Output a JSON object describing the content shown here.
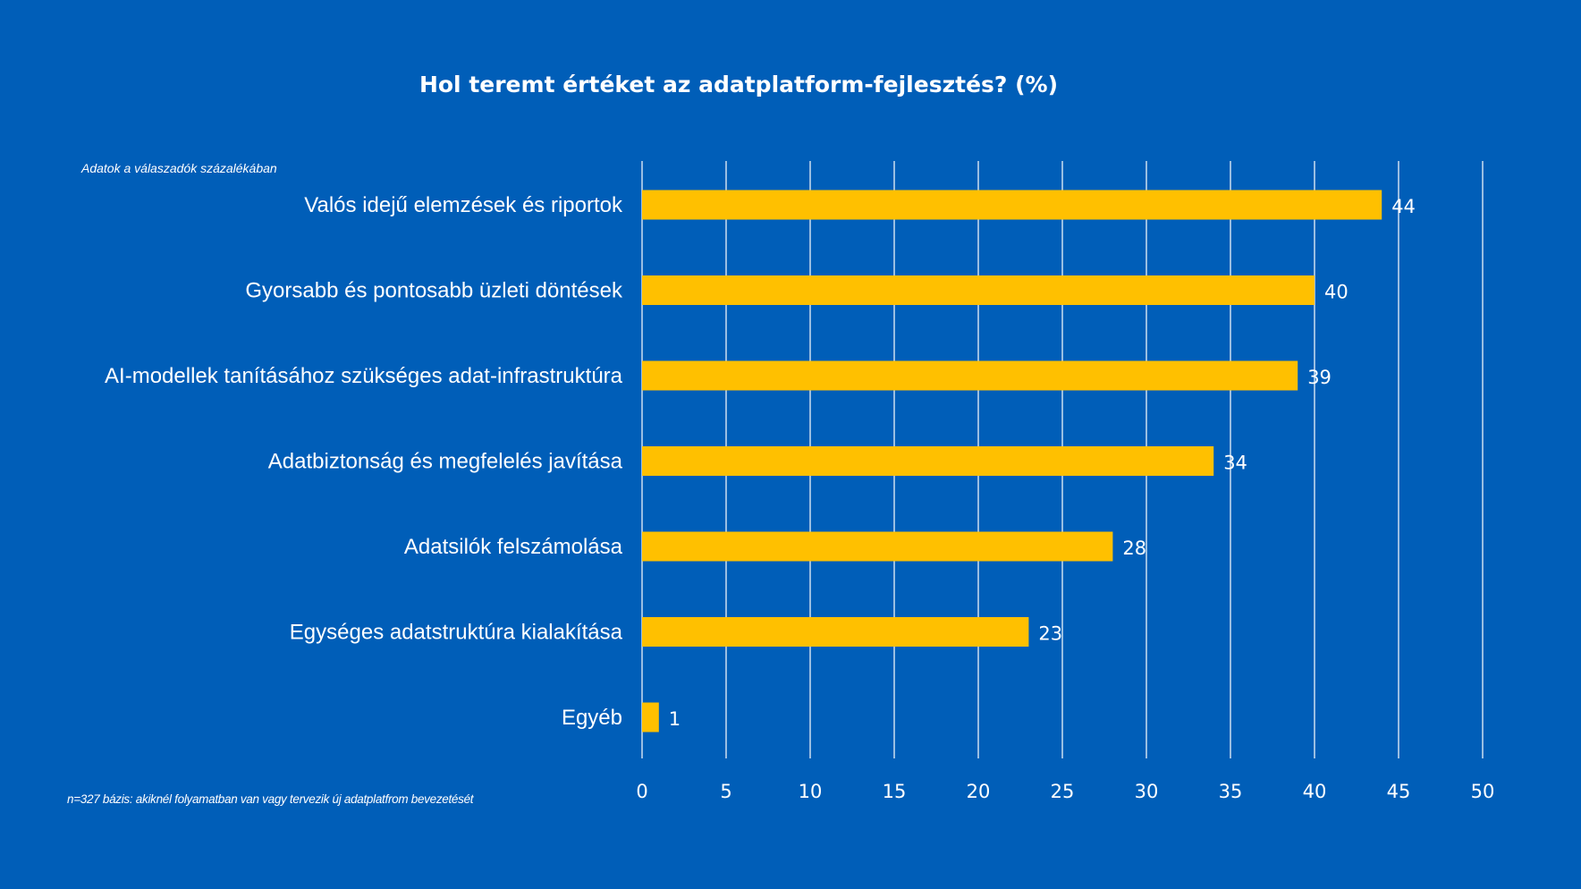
{
  "chart_data": {
    "type": "bar",
    "orientation": "horizontal",
    "title": "Hol teremt értéket az adatplatform-fejlesztés? (%)",
    "subtitle": "Adatok a válaszadók százalékában",
    "footnote": "n=327 bázis: akiknél folyamatban van vagy tervezik új adatplatfrom bevezetését",
    "categories": [
      "Valós idejű elemzések és riportok",
      "Gyorsabb és pontosabb üzleti döntések",
      "AI-modellek tanításához szükséges adat-infrastruktúra",
      "Adatbiztonság és megfelelés javítása",
      "Adatsilók felszámolása",
      "Egységes adatstruktúra kialakítása",
      "Egyéb"
    ],
    "values": [
      44,
      40,
      39,
      34,
      28,
      23,
      1
    ],
    "xlim": [
      0,
      50
    ],
    "xticks": [
      0,
      5,
      10,
      15,
      20,
      25,
      30,
      35,
      40,
      45,
      50
    ],
    "grid": true,
    "legend": "none",
    "colors": {
      "background": "#005EB8",
      "bar": "#FFC000",
      "grid": "#FFFFFF"
    }
  }
}
